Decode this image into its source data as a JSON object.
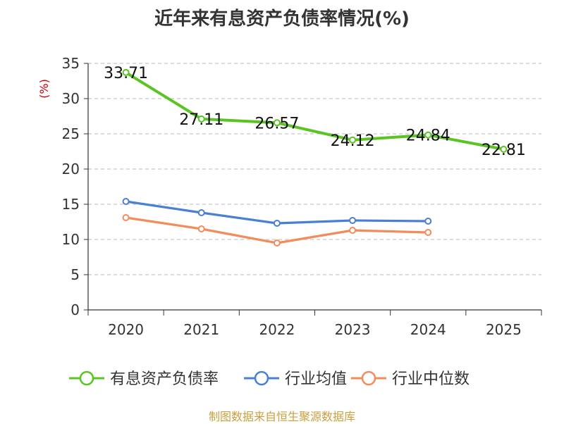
{
  "chart_data": {
    "type": "line",
    "title": "近年来有息资产负债率情况(%)",
    "ylabel": "(%)",
    "xlabel": "",
    "ylim": [
      0,
      35
    ],
    "yticks": [
      0,
      5,
      10,
      15,
      20,
      25,
      30,
      35
    ],
    "categories": [
      "2020",
      "2021",
      "2022",
      "2023",
      "2024",
      "2025"
    ],
    "grid": true,
    "legend_position": "bottom",
    "series": [
      {
        "name": "有息资产负债率",
        "color": "#5ac423",
        "values": [
          33.71,
          27.11,
          26.57,
          24.12,
          24.84,
          22.81
        ],
        "labels": [
          "33.71",
          "27.11",
          "26.57",
          "24.12",
          "24.84",
          "22.81"
        ]
      },
      {
        "name": "行业均值",
        "color": "#4a7fd6",
        "values": [
          15.4,
          13.8,
          12.3,
          12.7,
          12.6,
          null
        ]
      },
      {
        "name": "行业中位数",
        "color": "#f28c5a",
        "values": [
          13.1,
          11.5,
          9.5,
          11.3,
          11.0,
          null
        ]
      }
    ]
  },
  "footer": {
    "source": "制图数据来自恒生聚源数据库"
  }
}
